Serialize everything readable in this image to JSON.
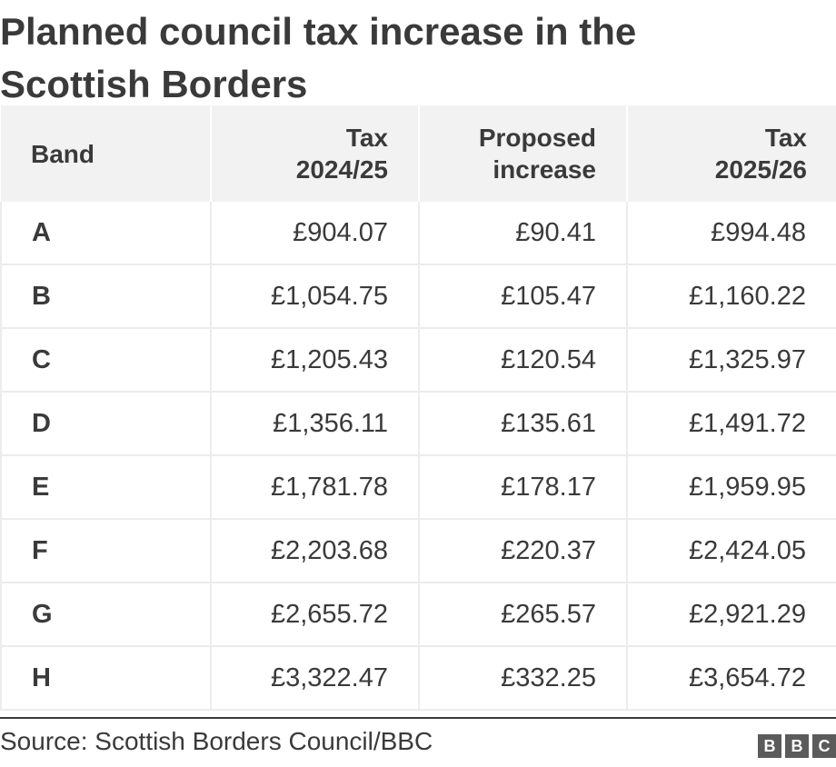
{
  "title_lines": [
    "Planned council tax increase in the",
    "Scottish Borders"
  ],
  "headers": [
    {
      "lines": [
        "Band"
      ]
    },
    {
      "lines": [
        "Tax",
        "2024/25"
      ]
    },
    {
      "lines": [
        "Proposed",
        "increase"
      ]
    },
    {
      "lines": [
        "Tax",
        "2025/26"
      ]
    }
  ],
  "rows": [
    [
      "A",
      "£904.07",
      "£90.41",
      "£994.48"
    ],
    [
      "B",
      "£1,054.75",
      "£105.47",
      "£1,160.22"
    ],
    [
      "C",
      "£1,205.43",
      "£120.54",
      "£1,325.97"
    ],
    [
      "D",
      "£1,356.11",
      "£135.61",
      "£1,491.72"
    ],
    [
      "E",
      "£1,781.78",
      "£178.17",
      "£1,959.95"
    ],
    [
      "F",
      "£2,203.68",
      "£220.37",
      "£2,424.05"
    ],
    [
      "G",
      "£2,655.72",
      "£265.57",
      "£2,921.29"
    ],
    [
      "H",
      "£3,322.47",
      "£332.25",
      "£3,654.72"
    ]
  ],
  "source": "Source: Scottish Borders Council/BBC",
  "logo_letters": [
    "B",
    "B",
    "C"
  ],
  "chart_data": {
    "type": "table",
    "title": "Planned council tax increase in the Scottish Borders",
    "columns": [
      "Band",
      "Tax 2024/25",
      "Proposed increase",
      "Tax 2025/26"
    ],
    "categories": [
      "A",
      "B",
      "C",
      "D",
      "E",
      "F",
      "G",
      "H"
    ],
    "series": [
      {
        "name": "Tax 2024/25",
        "values": [
          904.07,
          1054.75,
          1205.43,
          1356.11,
          1781.78,
          2203.68,
          2655.72,
          3322.47
        ]
      },
      {
        "name": "Proposed increase",
        "values": [
          90.41,
          105.47,
          120.54,
          135.61,
          178.17,
          220.37,
          265.57,
          332.25
        ]
      },
      {
        "name": "Tax 2025/26",
        "values": [
          994.48,
          1160.22,
          1325.97,
          1491.72,
          1959.95,
          2424.05,
          2921.29,
          3654.72
        ]
      }
    ]
  }
}
